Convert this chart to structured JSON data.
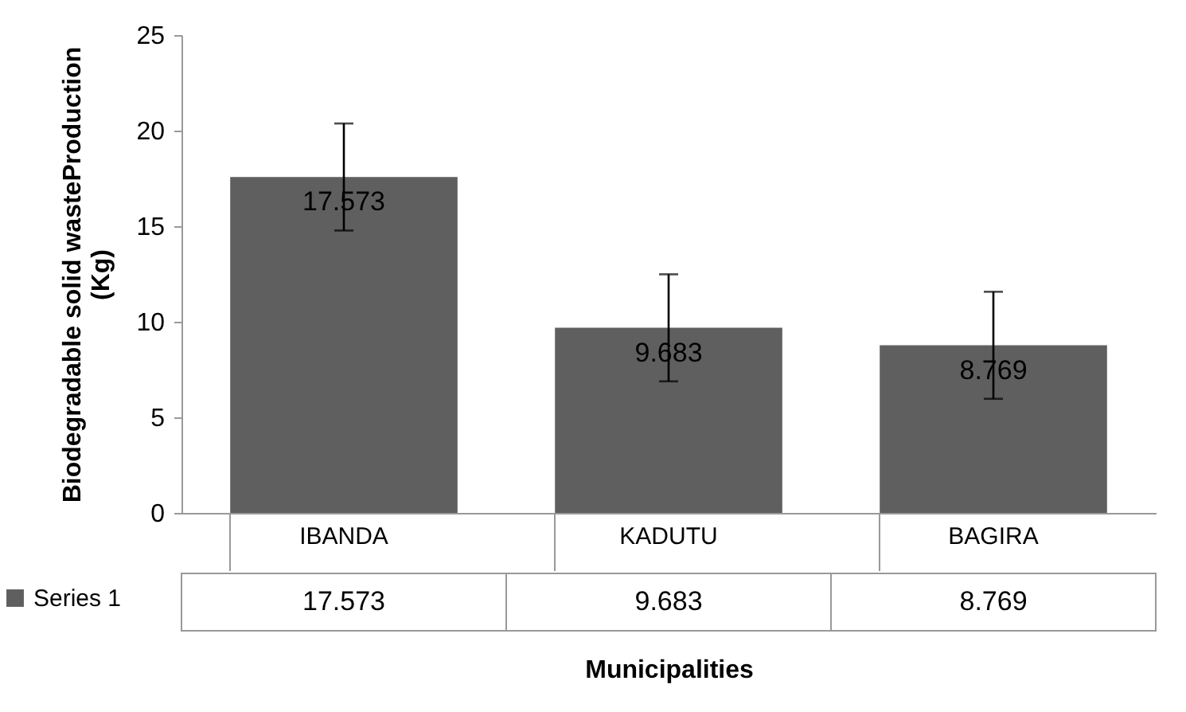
{
  "chart_data": {
    "type": "bar",
    "xlabel": "Municipalities",
    "ylabel": "Biodegradable solid wasteProduction (Kg)",
    "categories": [
      "IBANDA",
      "KADUTU",
      "BAGIRA"
    ],
    "series": [
      {
        "name": "Series 1",
        "color": "#5f5f5f",
        "values": [
          17.573,
          9.683,
          8.769
        ],
        "errors": [
          2.8,
          2.8,
          2.8
        ]
      }
    ],
    "ylim": [
      0,
      25
    ],
    "yticks": [
      0,
      5,
      10,
      15,
      20,
      25
    ],
    "grid": false,
    "legend": "bottom left",
    "data_labels": true,
    "annotations": [
      "17.573",
      "9.683",
      "8.769"
    ]
  }
}
